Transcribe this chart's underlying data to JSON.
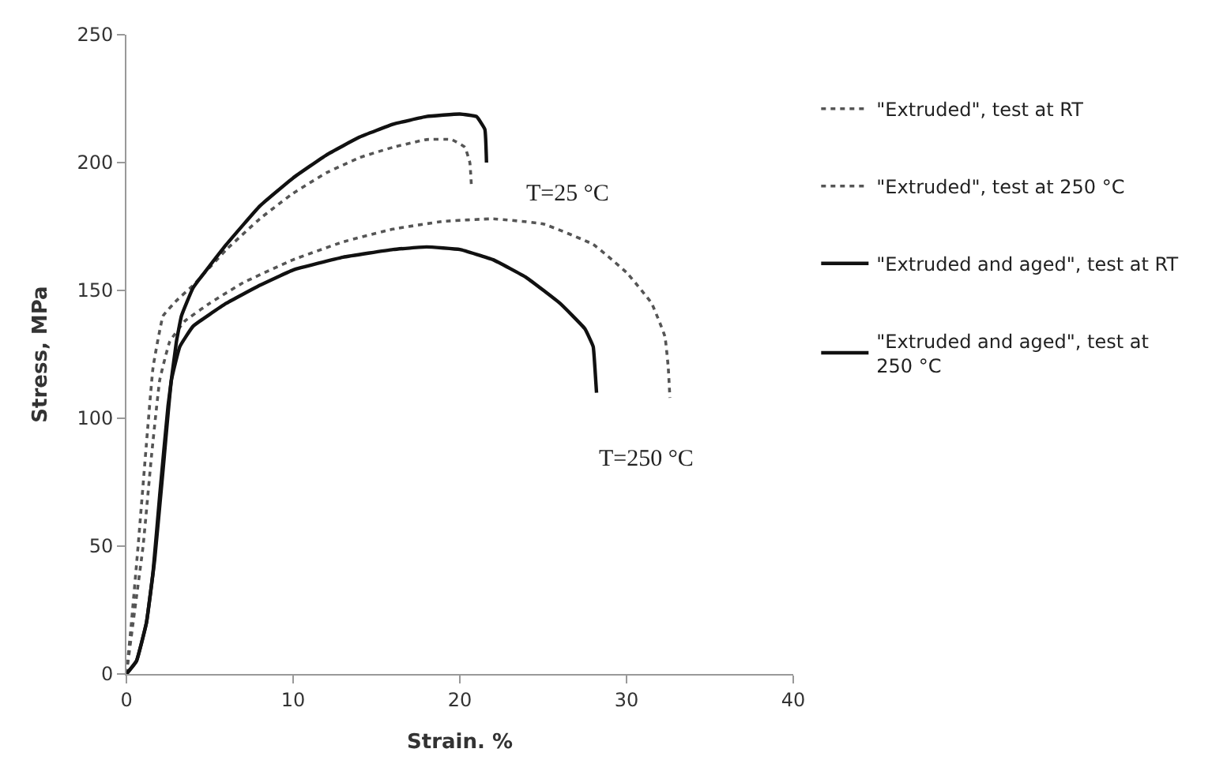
{
  "chart_data": {
    "type": "line",
    "xlabel": "Strain. %",
    "ylabel": "Stress, MPa",
    "xlim": [
      0,
      40
    ],
    "xticks": [
      0,
      10,
      20,
      30,
      40
    ],
    "ylim": [
      0,
      250
    ],
    "yticks": [
      0,
      50,
      100,
      150,
      200,
      250
    ],
    "legend": "right",
    "marker": "none",
    "annotations": [
      "T=25 °C",
      "T=250 °C"
    ],
    "series": [
      {
        "name": "\"Extruded\", test at RT",
        "color": "#555555",
        "line_style": "dotted",
        "x": [
          0,
          0.3,
          0.7,
          1.2,
          1.6,
          2.2,
          3,
          4,
          6,
          8,
          10,
          12,
          14,
          16,
          18,
          19.5,
          20.3,
          20.6,
          20.7
        ],
        "values": [
          0,
          20,
          50,
          90,
          120,
          140,
          146,
          152,
          166,
          178,
          188,
          196,
          202,
          206,
          209,
          209,
          206,
          200,
          190
        ]
      },
      {
        "name": "\"Extruded\", test at 250 °C",
        "color": "#555555",
        "line_style": "dotted",
        "x": [
          0,
          0.5,
          1,
          1.5,
          2,
          2.6,
          3.5,
          5,
          7,
          10,
          13,
          16,
          19,
          22,
          25,
          28,
          30,
          31.5,
          32.3,
          32.5,
          32.6
        ],
        "values": [
          0,
          25,
          50,
          85,
          115,
          130,
          138,
          145,
          153,
          162,
          169,
          174,
          177,
          178,
          176,
          168,
          157,
          145,
          132,
          120,
          108
        ]
      },
      {
        "name": "\"Extruded and aged\", test at RT",
        "color": "#111111",
        "line_style": "solid",
        "x": [
          0,
          0.6,
          1.2,
          1.6,
          2,
          2.5,
          3,
          3.3,
          4,
          6,
          8,
          10,
          12,
          14,
          16,
          18,
          20,
          21,
          21.5,
          21.6
        ],
        "values": [
          0,
          5,
          20,
          40,
          70,
          105,
          130,
          140,
          151,
          168,
          183,
          194,
          203,
          210,
          215,
          218,
          219,
          218,
          213,
          200
        ]
      },
      {
        "name": "\"Extruded and aged\", test at 250 °C",
        "color": "#111111",
        "line_style": "solid",
        "x": [
          0,
          0.6,
          1.2,
          1.7,
          2.2,
          2.7,
          3.2,
          4,
          6,
          8,
          10,
          13,
          16,
          18,
          20,
          22,
          24,
          26,
          27.5,
          28,
          28.1,
          28.2
        ],
        "values": [
          0,
          5,
          20,
          45,
          80,
          115,
          128,
          136,
          145,
          152,
          158,
          163,
          166,
          167,
          166,
          162,
          155,
          145,
          135,
          128,
          120,
          110
        ]
      }
    ]
  }
}
